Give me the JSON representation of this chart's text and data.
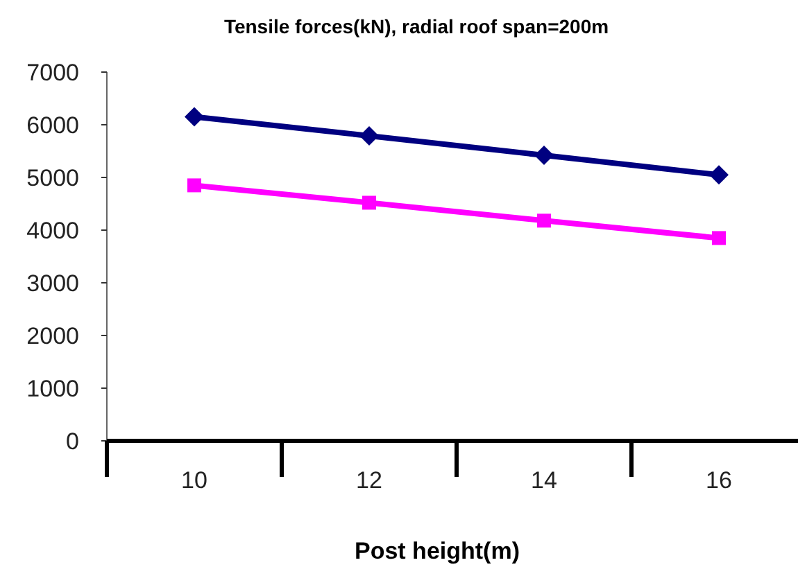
{
  "chart_data": {
    "type": "line",
    "title": "Tensile forces(kN), radial roof span=200m",
    "xlabel": "Post height(m)",
    "categories": [
      "10",
      "12",
      "14",
      "16"
    ],
    "series": [
      {
        "color": "#000080",
        "values": [
          6150,
          5790,
          5420,
          5050
        ],
        "marker": "diamond"
      },
      {
        "color": "#ff00ff",
        "values": [
          4850,
          4520,
          4180,
          3850
        ],
        "marker": "square"
      }
    ],
    "ylim": [
      0,
      7000
    ],
    "yticks": [
      0,
      1000,
      2000,
      3000,
      4000,
      5000,
      6000,
      7000
    ],
    "grid": false,
    "line_style": "solid"
  }
}
